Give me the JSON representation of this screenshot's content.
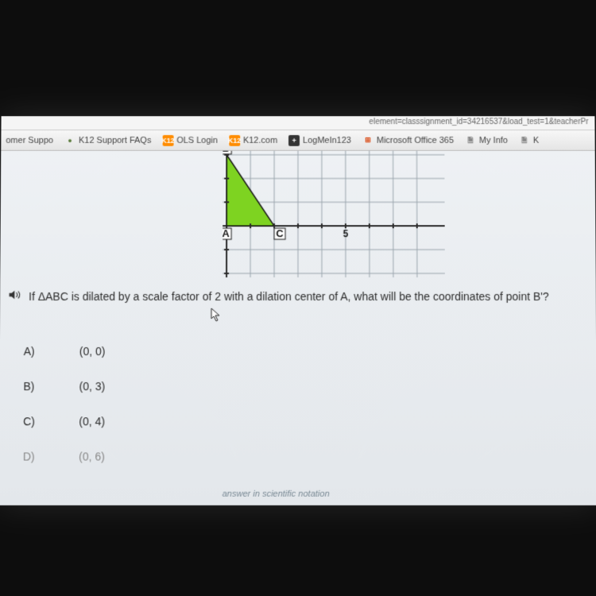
{
  "url_fragment": "element=classsignment_id=34216537&load_test=1&teacherPr",
  "bookmarks": {
    "items": [
      {
        "label": "omer Suppo",
        "icon": "",
        "icon_bg": "",
        "icon_color": ""
      },
      {
        "label": "K12 Support FAQs",
        "icon": "●",
        "icon_bg": "",
        "icon_color": "#5a7a3a"
      },
      {
        "label": "OLS Login",
        "icon": "K12",
        "icon_bg": "#ff8c00",
        "icon_color": "#fff"
      },
      {
        "label": "K12.com",
        "icon": "K12",
        "icon_bg": "#ff8c00",
        "icon_color": "#fff"
      },
      {
        "label": "LogMeIn123",
        "icon": "+",
        "icon_bg": "#333",
        "icon_color": "#fff"
      },
      {
        "label": "Microsoft Office 365",
        "icon": "⊞",
        "icon_bg": "",
        "icon_color": "#d83b01"
      },
      {
        "label": "My Info",
        "icon": "🗎",
        "icon_bg": "",
        "icon_color": "#888"
      },
      {
        "label": "K",
        "icon": "🗎",
        "icon_bg": "",
        "icon_color": "#888"
      }
    ]
  },
  "grid": {
    "cell": 30,
    "origin_x": 5,
    "origin_y": 95,
    "x_ticks": [
      5
    ],
    "y_ticks_pos": [
      2
    ],
    "y_ticks_neg": [
      -2
    ],
    "grid_color": "#9aa5ad",
    "axis_color": "#2b2b2b",
    "tick_font": 12,
    "tick_color": "#1a1a1a",
    "triangle": {
      "A": [
        0,
        0
      ],
      "B": [
        0,
        3
      ],
      "C": [
        2,
        0
      ],
      "fill": "#7ed321",
      "stroke": "#1a1a1a",
      "label_color": "#1a1a1a",
      "label_font": 13
    }
  },
  "question": {
    "text": "If ΔABC is dilated by a scale factor of 2 with a dilation center of A, what will be the coordinates of point B'?"
  },
  "answers": [
    {
      "label": "A)",
      "value": "(0, 0)",
      "faded": false
    },
    {
      "label": "B)",
      "value": "(0, 3)",
      "faded": false
    },
    {
      "label": "C)",
      "value": "(0, 4)",
      "faded": false
    },
    {
      "label": "D)",
      "value": "(0, 6)",
      "faded": true
    }
  ],
  "footer": "answer in scientific notation"
}
